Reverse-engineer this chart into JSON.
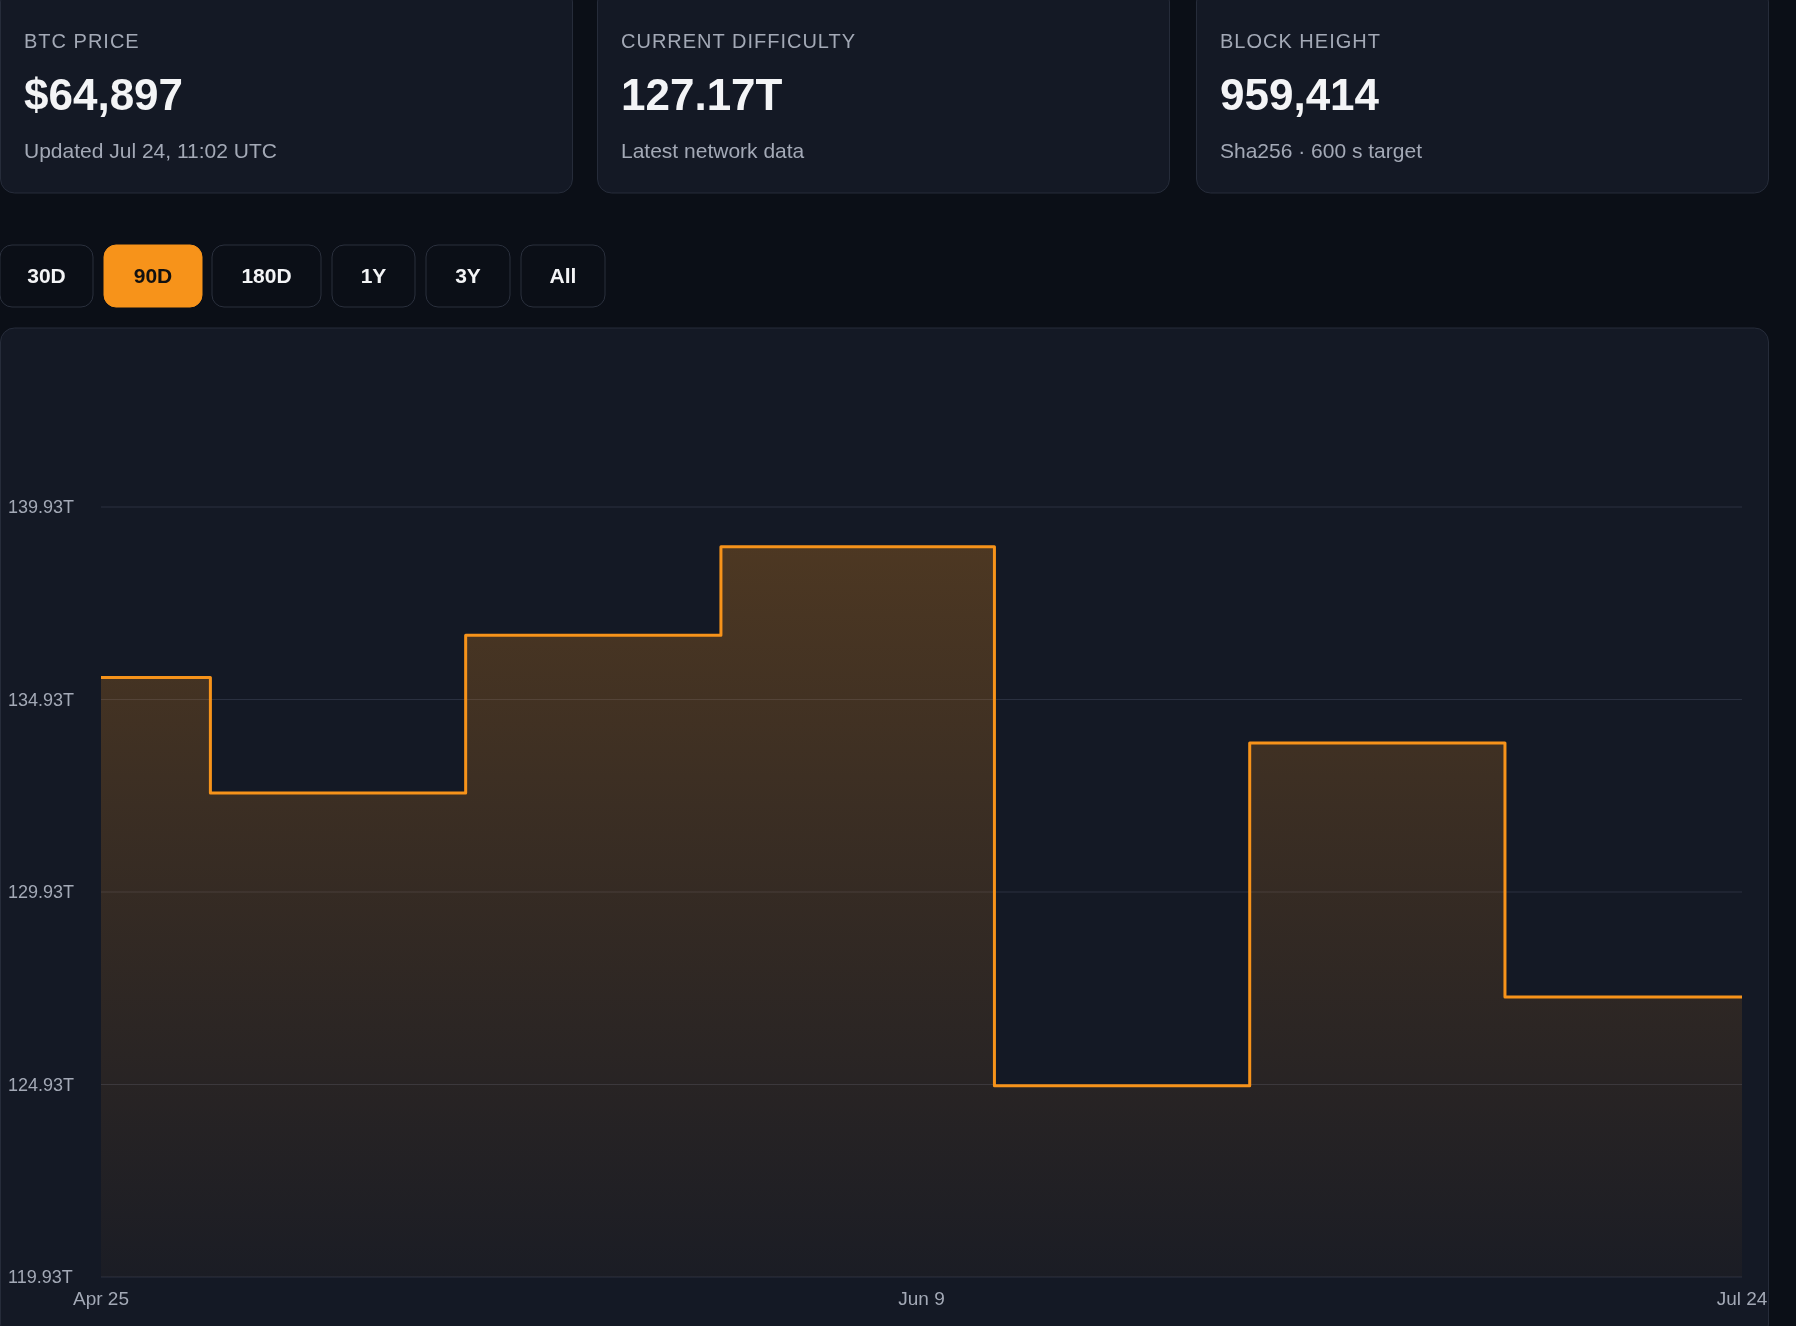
{
  "chart_data": [
    {
      "type": "other",
      "title": "BTC PRICE",
      "annotations": [
        "$64,897",
        "Updated Jul 24, 11:02 UTC"
      ]
    },
    {
      "type": "other",
      "title": "CURRENT DIFFICULTY",
      "annotations": [
        "127.17T",
        "Latest network data"
      ]
    },
    {
      "type": "other",
      "title": "BLOCK HEIGHT",
      "annotations": [
        "959,414",
        "Sha256 · 600 s target"
      ]
    },
    {
      "type": "other",
      "categories": [
        "30D",
        "90D",
        "180D",
        "1Y",
        "3Y",
        "All"
      ],
      "colors": [
        "#0b0f17",
        "#f7931a",
        "#0b0f17",
        "#0b0f17",
        "#0b0f17",
        "#0b0f17"
      ]
    },
    {
      "type": "area",
      "x": [
        "--04-25",
        "--05-01",
        "--05-01",
        "--05-15",
        "--05-15",
        "--05-29",
        "--05-29",
        "--06-13",
        "--06-13",
        "--06-27",
        "--06-27",
        "--07-11",
        "--07-11",
        "--07-24"
      ],
      "series": [
        {
          "color": "#f7931a",
          "values": [
            135.5,
            135.5,
            132.5,
            132.5,
            136.6,
            136.6,
            138.9,
            138.9,
            124.9,
            124.9,
            133.8,
            133.8,
            127.2,
            127.2
          ]
        }
      ],
      "xlim": [
        "--04-25",
        "--07-24"
      ],
      "xticks": [
        {
          "value": "--04-25",
          "label": "Apr 25"
        },
        {
          "value": "--06-09",
          "label": "Jun 9"
        },
        {
          "value": "--07-24",
          "label": "Jul 24"
        }
      ],
      "ylim": [
        119.93,
        139.93
      ],
      "yticks": [
        {
          "value": 119.93,
          "label": "119.93T"
        },
        {
          "value": 124.93,
          "label": "124.93T"
        },
        {
          "value": 129.93,
          "label": "129.93T"
        },
        {
          "value": 134.93,
          "label": "134.93T"
        },
        {
          "value": 139.93,
          "label": "139.93T"
        }
      ],
      "grid": "y"
    }
  ]
}
